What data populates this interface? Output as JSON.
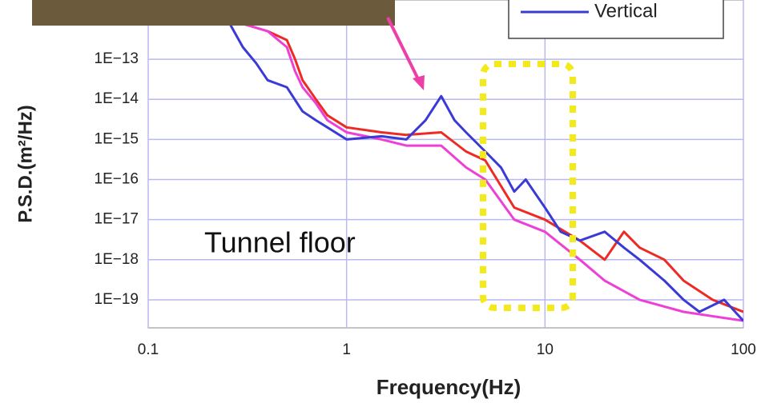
{
  "chart_data": {
    "type": "line",
    "y_label": "P.S.D.(m²/Hz)",
    "x_label": "Frequency(Hz)",
    "annotation": "Tunnel floor",
    "log_x": true,
    "log_y": true,
    "grid": true,
    "xlim": [
      0.1,
      100
    ],
    "xticks": [
      0.1,
      1,
      10,
      100
    ],
    "ylim": [
      2e-20,
      3e-12
    ],
    "yticks": [
      {
        "value": 1e-13,
        "label": "1E−13"
      },
      {
        "value": 1e-14,
        "label": "1E−14"
      },
      {
        "value": 1e-15,
        "label": "1E−15"
      },
      {
        "value": 1e-16,
        "label": "1E−16"
      },
      {
        "value": 1e-17,
        "label": "1E−17"
      },
      {
        "value": 1e-18,
        "label": "1E−18"
      },
      {
        "value": 1e-19,
        "label": "1E−19"
      }
    ],
    "series": [
      {
        "color": "#ee2a24",
        "x": [
          0.25,
          0.4,
          0.5,
          0.55,
          0.6,
          0.7,
          0.8,
          1,
          1.5,
          2,
          3,
          4,
          5,
          7,
          10,
          15,
          20,
          25,
          30,
          40,
          50,
          70,
          100
        ],
        "values": [
          1e-12,
          5e-13,
          3e-13,
          1e-13,
          3e-14,
          1e-14,
          4e-15,
          2e-15,
          1.5e-15,
          1.3e-15,
          1.5e-15,
          5e-16,
          3e-16,
          2e-17,
          1e-17,
          3e-18,
          1e-18,
          5e-18,
          2e-18,
          1e-18,
          3e-19,
          1e-19,
          5e-20
        ]
      },
      {
        "color": "#ee3fd6",
        "x": [
          0.25,
          0.4,
          0.5,
          0.55,
          0.6,
          0.7,
          0.8,
          1,
          1.5,
          2,
          3,
          4,
          5,
          7,
          10,
          15,
          20,
          30,
          50,
          100
        ],
        "values": [
          1e-12,
          5e-13,
          2e-13,
          5e-14,
          2e-14,
          8e-15,
          3e-15,
          1.5e-15,
          1e-15,
          7e-16,
          7e-16,
          2e-16,
          1e-16,
          1e-17,
          5e-18,
          1e-18,
          3e-19,
          1e-19,
          5e-20,
          3e-20
        ]
      },
      {
        "name": "Vertical",
        "color": "#3a3ad6",
        "x": [
          0.25,
          0.3,
          0.35,
          0.4,
          0.5,
          0.6,
          0.7,
          0.8,
          1,
          1.5,
          2,
          2.5,
          3,
          3.5,
          4,
          5,
          6,
          7,
          8,
          10,
          12,
          15,
          20,
          25,
          30,
          40,
          50,
          60,
          80,
          100
        ],
        "values": [
          1e-12,
          2e-13,
          8e-14,
          3e-14,
          2e-14,
          5e-15,
          3e-15,
          2e-15,
          1e-15,
          1.2e-15,
          1e-15,
          3e-15,
          1.2e-14,
          3e-15,
          1.5e-15,
          5e-16,
          2e-16,
          5e-17,
          1e-16,
          2e-17,
          5e-18,
          3e-18,
          5e-18,
          2e-18,
          1e-18,
          3e-19,
          1e-19,
          5e-20,
          1e-19,
          3e-20
        ]
      }
    ]
  }
}
